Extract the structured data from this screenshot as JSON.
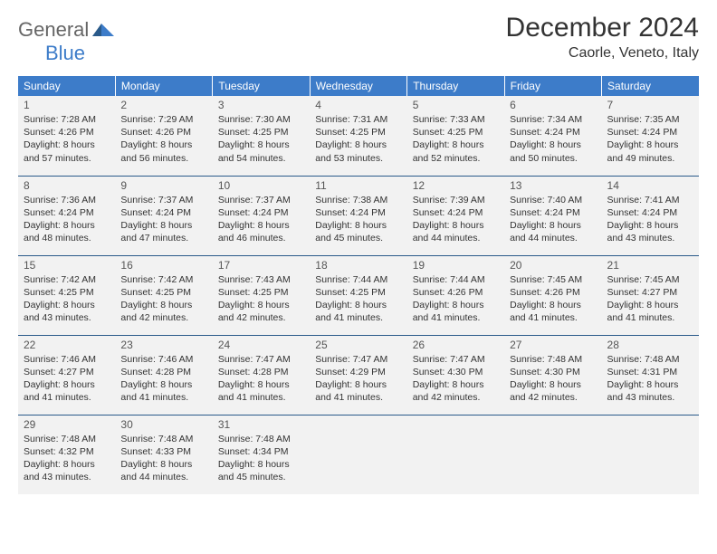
{
  "brand": {
    "part1": "General",
    "part2": "Blue"
  },
  "title": "December 2024",
  "location": "Caorle, Veneto, Italy",
  "colors": {
    "header_bg": "#3d7cc9",
    "header_text": "#ffffff",
    "cell_bg": "#f2f2f2",
    "divider": "#2a5a8a",
    "text": "#333333",
    "brand_gray": "#666666",
    "brand_blue": "#3d7cc9",
    "page_bg": "#ffffff"
  },
  "weekdays": [
    "Sunday",
    "Monday",
    "Tuesday",
    "Wednesday",
    "Thursday",
    "Friday",
    "Saturday"
  ],
  "weeks": [
    [
      {
        "d": "1",
        "sr": "Sunrise: 7:28 AM",
        "ss": "Sunset: 4:26 PM",
        "dl1": "Daylight: 8 hours",
        "dl2": "and 57 minutes."
      },
      {
        "d": "2",
        "sr": "Sunrise: 7:29 AM",
        "ss": "Sunset: 4:26 PM",
        "dl1": "Daylight: 8 hours",
        "dl2": "and 56 minutes."
      },
      {
        "d": "3",
        "sr": "Sunrise: 7:30 AM",
        "ss": "Sunset: 4:25 PM",
        "dl1": "Daylight: 8 hours",
        "dl2": "and 54 minutes."
      },
      {
        "d": "4",
        "sr": "Sunrise: 7:31 AM",
        "ss": "Sunset: 4:25 PM",
        "dl1": "Daylight: 8 hours",
        "dl2": "and 53 minutes."
      },
      {
        "d": "5",
        "sr": "Sunrise: 7:33 AM",
        "ss": "Sunset: 4:25 PM",
        "dl1": "Daylight: 8 hours",
        "dl2": "and 52 minutes."
      },
      {
        "d": "6",
        "sr": "Sunrise: 7:34 AM",
        "ss": "Sunset: 4:24 PM",
        "dl1": "Daylight: 8 hours",
        "dl2": "and 50 minutes."
      },
      {
        "d": "7",
        "sr": "Sunrise: 7:35 AM",
        "ss": "Sunset: 4:24 PM",
        "dl1": "Daylight: 8 hours",
        "dl2": "and 49 minutes."
      }
    ],
    [
      {
        "d": "8",
        "sr": "Sunrise: 7:36 AM",
        "ss": "Sunset: 4:24 PM",
        "dl1": "Daylight: 8 hours",
        "dl2": "and 48 minutes."
      },
      {
        "d": "9",
        "sr": "Sunrise: 7:37 AM",
        "ss": "Sunset: 4:24 PM",
        "dl1": "Daylight: 8 hours",
        "dl2": "and 47 minutes."
      },
      {
        "d": "10",
        "sr": "Sunrise: 7:37 AM",
        "ss": "Sunset: 4:24 PM",
        "dl1": "Daylight: 8 hours",
        "dl2": "and 46 minutes."
      },
      {
        "d": "11",
        "sr": "Sunrise: 7:38 AM",
        "ss": "Sunset: 4:24 PM",
        "dl1": "Daylight: 8 hours",
        "dl2": "and 45 minutes."
      },
      {
        "d": "12",
        "sr": "Sunrise: 7:39 AM",
        "ss": "Sunset: 4:24 PM",
        "dl1": "Daylight: 8 hours",
        "dl2": "and 44 minutes."
      },
      {
        "d": "13",
        "sr": "Sunrise: 7:40 AM",
        "ss": "Sunset: 4:24 PM",
        "dl1": "Daylight: 8 hours",
        "dl2": "and 44 minutes."
      },
      {
        "d": "14",
        "sr": "Sunrise: 7:41 AM",
        "ss": "Sunset: 4:24 PM",
        "dl1": "Daylight: 8 hours",
        "dl2": "and 43 minutes."
      }
    ],
    [
      {
        "d": "15",
        "sr": "Sunrise: 7:42 AM",
        "ss": "Sunset: 4:25 PM",
        "dl1": "Daylight: 8 hours",
        "dl2": "and 43 minutes."
      },
      {
        "d": "16",
        "sr": "Sunrise: 7:42 AM",
        "ss": "Sunset: 4:25 PM",
        "dl1": "Daylight: 8 hours",
        "dl2": "and 42 minutes."
      },
      {
        "d": "17",
        "sr": "Sunrise: 7:43 AM",
        "ss": "Sunset: 4:25 PM",
        "dl1": "Daylight: 8 hours",
        "dl2": "and 42 minutes."
      },
      {
        "d": "18",
        "sr": "Sunrise: 7:44 AM",
        "ss": "Sunset: 4:25 PM",
        "dl1": "Daylight: 8 hours",
        "dl2": "and 41 minutes."
      },
      {
        "d": "19",
        "sr": "Sunrise: 7:44 AM",
        "ss": "Sunset: 4:26 PM",
        "dl1": "Daylight: 8 hours",
        "dl2": "and 41 minutes."
      },
      {
        "d": "20",
        "sr": "Sunrise: 7:45 AM",
        "ss": "Sunset: 4:26 PM",
        "dl1": "Daylight: 8 hours",
        "dl2": "and 41 minutes."
      },
      {
        "d": "21",
        "sr": "Sunrise: 7:45 AM",
        "ss": "Sunset: 4:27 PM",
        "dl1": "Daylight: 8 hours",
        "dl2": "and 41 minutes."
      }
    ],
    [
      {
        "d": "22",
        "sr": "Sunrise: 7:46 AM",
        "ss": "Sunset: 4:27 PM",
        "dl1": "Daylight: 8 hours",
        "dl2": "and 41 minutes."
      },
      {
        "d": "23",
        "sr": "Sunrise: 7:46 AM",
        "ss": "Sunset: 4:28 PM",
        "dl1": "Daylight: 8 hours",
        "dl2": "and 41 minutes."
      },
      {
        "d": "24",
        "sr": "Sunrise: 7:47 AM",
        "ss": "Sunset: 4:28 PM",
        "dl1": "Daylight: 8 hours",
        "dl2": "and 41 minutes."
      },
      {
        "d": "25",
        "sr": "Sunrise: 7:47 AM",
        "ss": "Sunset: 4:29 PM",
        "dl1": "Daylight: 8 hours",
        "dl2": "and 41 minutes."
      },
      {
        "d": "26",
        "sr": "Sunrise: 7:47 AM",
        "ss": "Sunset: 4:30 PM",
        "dl1": "Daylight: 8 hours",
        "dl2": "and 42 minutes."
      },
      {
        "d": "27",
        "sr": "Sunrise: 7:48 AM",
        "ss": "Sunset: 4:30 PM",
        "dl1": "Daylight: 8 hours",
        "dl2": "and 42 minutes."
      },
      {
        "d": "28",
        "sr": "Sunrise: 7:48 AM",
        "ss": "Sunset: 4:31 PM",
        "dl1": "Daylight: 8 hours",
        "dl2": "and 43 minutes."
      }
    ],
    [
      {
        "d": "29",
        "sr": "Sunrise: 7:48 AM",
        "ss": "Sunset: 4:32 PM",
        "dl1": "Daylight: 8 hours",
        "dl2": "and 43 minutes."
      },
      {
        "d": "30",
        "sr": "Sunrise: 7:48 AM",
        "ss": "Sunset: 4:33 PM",
        "dl1": "Daylight: 8 hours",
        "dl2": "and 44 minutes."
      },
      {
        "d": "31",
        "sr": "Sunrise: 7:48 AM",
        "ss": "Sunset: 4:34 PM",
        "dl1": "Daylight: 8 hours",
        "dl2": "and 45 minutes."
      },
      null,
      null,
      null,
      null
    ]
  ]
}
